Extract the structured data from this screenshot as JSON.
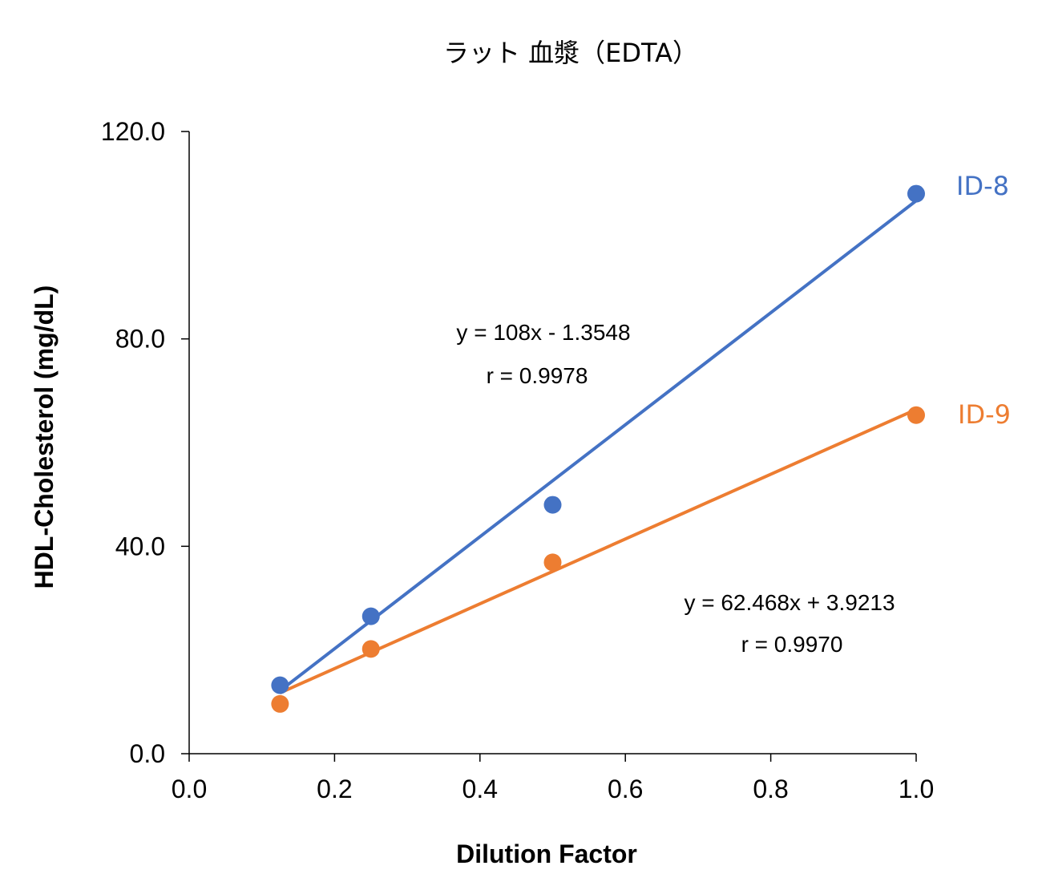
{
  "chart_data": {
    "type": "scatter",
    "title": "ラット 血漿（EDTA）",
    "xlabel": "Dilution Factor",
    "ylabel": "HDL-Cholesterol (mg/dL)",
    "xlim": [
      0,
      1.0
    ],
    "ylim": [
      0,
      120
    ],
    "x_ticks": [
      0.0,
      0.2,
      0.4,
      0.6,
      0.8,
      1.0
    ],
    "x_tick_labels": [
      "0.0",
      "0.2",
      "0.4",
      "0.6",
      "0.8",
      "1.0"
    ],
    "y_ticks": [
      0,
      40,
      80,
      120
    ],
    "y_tick_labels": [
      "0.0",
      "40.0",
      "80.0",
      "120.0"
    ],
    "grid": false,
    "series": [
      {
        "name": "ID-8",
        "color": "#4472C4",
        "x": [
          0.125,
          0.25,
          0.5,
          1.0
        ],
        "y": [
          13.2,
          26.5,
          48.0,
          108.0
        ],
        "trendline": {
          "slope": 108,
          "intercept": -1.3548,
          "x_range": [
            0.125,
            1.0
          ]
        },
        "equation": "y = 108x - 1.3548",
        "r": "r = 0.9978"
      },
      {
        "name": "ID-9",
        "color": "#ED7D31",
        "x": [
          0.125,
          0.25,
          0.5,
          1.0
        ],
        "y": [
          9.6,
          20.2,
          36.9,
          65.3
        ],
        "trendline": {
          "slope": 62.468,
          "intercept": 3.9213,
          "x_range": [
            0.125,
            1.0
          ]
        },
        "equation": "y = 62.468x + 3.9213",
        "r": "r = 0.9970"
      }
    ]
  }
}
